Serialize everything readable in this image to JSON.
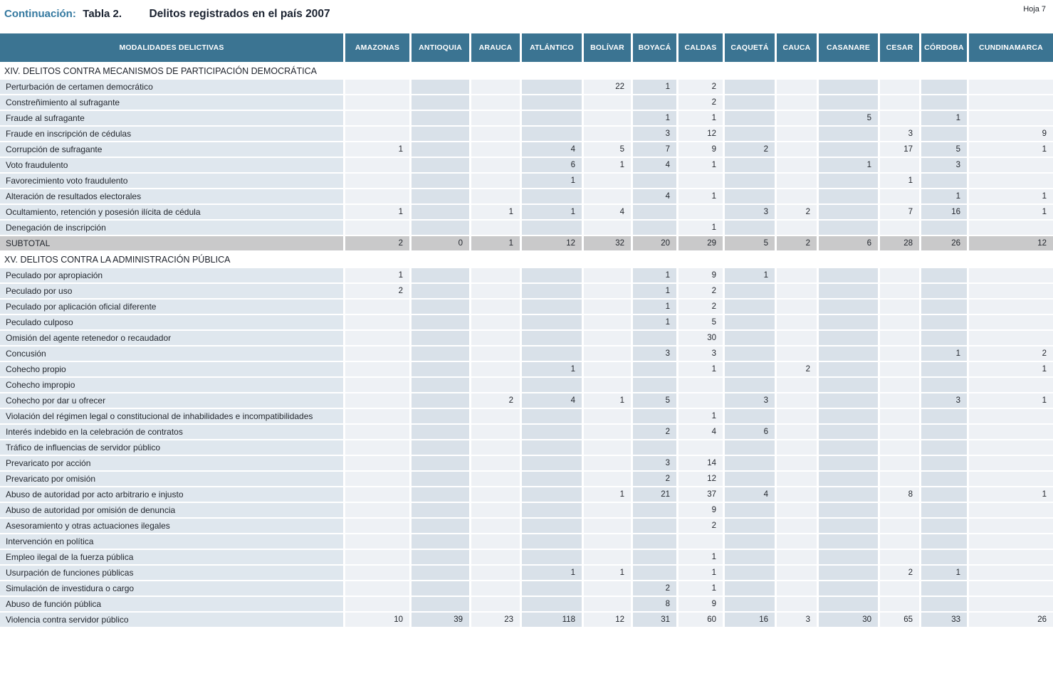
{
  "page": {
    "continuation_label": "Continuación:",
    "table_label": "Tabla 2.",
    "title": "Delitos registrados en el país 2007",
    "sheet": "Hoja 7"
  },
  "colors": {
    "accent": "#33789f",
    "header_bg": "#3b7492",
    "column_light": "#eef1f5",
    "column_dark": "#d9e1e9",
    "label_cell": "#dfe7ee",
    "subtotal_row": "#c9c9ca"
  },
  "table": {
    "header": [
      "MODALIDADES DELICTIVAS",
      "AMAZONAS",
      "ANTIOQUIA",
      "ARAUCA",
      "ATLÁNTICO",
      "BOLÍVAR",
      "BOYACÁ",
      "CALDAS",
      "CAQUETÁ",
      "CAUCA",
      "CASANARE",
      "CESAR",
      "CÓRDOBA",
      "CUNDINAMARCA"
    ],
    "sections": [
      {
        "title": "XIV. DELITOS CONTRA MECANISMOS DE PARTICIPACIÓN DEMOCRÁTICA",
        "rows": [
          {
            "label": "Perturbación de certamen democrático",
            "values": [
              "",
              "",
              "",
              "",
              "22",
              "1",
              "2",
              "",
              "",
              "",
              "",
              "",
              ""
            ]
          },
          {
            "label": "Constreñimiento al sufragante",
            "values": [
              "",
              "",
              "",
              "",
              "",
              "",
              "2",
              "",
              "",
              "",
              "",
              "",
              ""
            ]
          },
          {
            "label": "Fraude al sufragante",
            "values": [
              "",
              "",
              "",
              "",
              "",
              "1",
              "1",
              "",
              "",
              "5",
              "",
              "1",
              ""
            ]
          },
          {
            "label": "Fraude en inscripción de cédulas",
            "values": [
              "",
              "",
              "",
              "",
              "",
              "3",
              "12",
              "",
              "",
              "",
              "3",
              "",
              "9"
            ]
          },
          {
            "label": "Corrupción de sufragante",
            "values": [
              "1",
              "",
              "",
              "4",
              "5",
              "7",
              "9",
              "2",
              "",
              "",
              "17",
              "5",
              "1"
            ]
          },
          {
            "label": "Voto fraudulento",
            "values": [
              "",
              "",
              "",
              "6",
              "1",
              "4",
              "1",
              "",
              "",
              "1",
              "",
              "3",
              ""
            ]
          },
          {
            "label": "Favorecimiento voto fraudulento",
            "values": [
              "",
              "",
              "",
              "1",
              "",
              "",
              "",
              "",
              "",
              "",
              "1",
              "",
              ""
            ]
          },
          {
            "label": "Alteración de resultados electorales",
            "values": [
              "",
              "",
              "",
              "",
              "",
              "4",
              "1",
              "",
              "",
              "",
              "",
              "1",
              "1"
            ]
          },
          {
            "label": "Ocultamiento, retención y posesión ilícita de cédula",
            "values": [
              "1",
              "",
              "1",
              "1",
              "4",
              "",
              "",
              "3",
              "2",
              "",
              "7",
              "16",
              "1"
            ]
          },
          {
            "label": "Denegación de inscripción",
            "values": [
              "",
              "",
              "",
              "",
              "",
              "",
              "1",
              "",
              "",
              "",
              "",
              "",
              ""
            ]
          }
        ],
        "subtotal": {
          "label": "SUBTOTAL",
          "values": [
            "2",
            "0",
            "1",
            "12",
            "32",
            "20",
            "29",
            "5",
            "2",
            "6",
            "28",
            "26",
            "12"
          ]
        }
      },
      {
        "title": "XV. DELITOS CONTRA LA ADMINISTRACIÓN PÚBLICA",
        "rows": [
          {
            "label": "Peculado por apropiación",
            "values": [
              "1",
              "",
              "",
              "",
              "",
              "1",
              "9",
              "1",
              "",
              "",
              "",
              "",
              ""
            ]
          },
          {
            "label": "Peculado por uso",
            "values": [
              "2",
              "",
              "",
              "",
              "",
              "1",
              "2",
              "",
              "",
              "",
              "",
              "",
              ""
            ]
          },
          {
            "label": "Peculado por aplicación oficial diferente",
            "values": [
              "",
              "",
              "",
              "",
              "",
              "1",
              "2",
              "",
              "",
              "",
              "",
              "",
              ""
            ]
          },
          {
            "label": "Peculado culposo",
            "values": [
              "",
              "",
              "",
              "",
              "",
              "1",
              "5",
              "",
              "",
              "",
              "",
              "",
              ""
            ]
          },
          {
            "label": "Omisión del agente retenedor o recaudador",
            "values": [
              "",
              "",
              "",
              "",
              "",
              "",
              "30",
              "",
              "",
              "",
              "",
              "",
              ""
            ]
          },
          {
            "label": "Concusión",
            "values": [
              "",
              "",
              "",
              "",
              "",
              "3",
              "3",
              "",
              "",
              "",
              "",
              "1",
              "2"
            ]
          },
          {
            "label": "Cohecho propio",
            "values": [
              "",
              "",
              "",
              "1",
              "",
              "",
              "1",
              "",
              "2",
              "",
              "",
              "",
              "1"
            ]
          },
          {
            "label": "Cohecho impropio",
            "values": [
              "",
              "",
              "",
              "",
              "",
              "",
              "",
              "",
              "",
              "",
              "",
              "",
              ""
            ]
          },
          {
            "label": "Cohecho por dar u ofrecer",
            "values": [
              "",
              "",
              "2",
              "4",
              "1",
              "5",
              "",
              "3",
              "",
              "",
              "",
              "3",
              "1"
            ]
          },
          {
            "label": "Violación del régimen legal o constitucional de inhabilidades e incompatibilidades",
            "values": [
              "",
              "",
              "",
              "",
              "",
              "",
              "1",
              "",
              "",
              "",
              "",
              "",
              ""
            ]
          },
          {
            "label": "Interés indebido en la celebración de contratos",
            "values": [
              "",
              "",
              "",
              "",
              "",
              "2",
              "4",
              "6",
              "",
              "",
              "",
              "",
              ""
            ]
          },
          {
            "label": "Tráfico de influencias de servidor público",
            "values": [
              "",
              "",
              "",
              "",
              "",
              "",
              "",
              "",
              "",
              "",
              "",
              "",
              ""
            ]
          },
          {
            "label": "Prevaricato por acción",
            "values": [
              "",
              "",
              "",
              "",
              "",
              "3",
              "14",
              "",
              "",
              "",
              "",
              "",
              ""
            ]
          },
          {
            "label": "Prevaricato por omisión",
            "values": [
              "",
              "",
              "",
              "",
              "",
              "2",
              "12",
              "",
              "",
              "",
              "",
              "",
              ""
            ]
          },
          {
            "label": "Abuso de autoridad por acto arbitrario e injusto",
            "values": [
              "",
              "",
              "",
              "",
              "1",
              "21",
              "37",
              "4",
              "",
              "",
              "8",
              "",
              "1"
            ]
          },
          {
            "label": "Abuso de autoridad por omisión de denuncia",
            "values": [
              "",
              "",
              "",
              "",
              "",
              "",
              "9",
              "",
              "",
              "",
              "",
              "",
              ""
            ]
          },
          {
            "label": "Asesoramiento y otras actuaciones ilegales",
            "values": [
              "",
              "",
              "",
              "",
              "",
              "",
              "2",
              "",
              "",
              "",
              "",
              "",
              ""
            ]
          },
          {
            "label": "Intervención en política",
            "values": [
              "",
              "",
              "",
              "",
              "",
              "",
              "",
              "",
              "",
              "",
              "",
              "",
              ""
            ]
          },
          {
            "label": "Empleo ilegal de la fuerza pública",
            "values": [
              "",
              "",
              "",
              "",
              "",
              "",
              "1",
              "",
              "",
              "",
              "",
              "",
              ""
            ]
          },
          {
            "label": "Usurpación de funciones públicas",
            "values": [
              "",
              "",
              "",
              "1",
              "1",
              "",
              "1",
              "",
              "",
              "",
              "2",
              "1",
              ""
            ]
          },
          {
            "label": "Simulación de investidura o cargo",
            "values": [
              "",
              "",
              "",
              "",
              "",
              "2",
              "1",
              "",
              "",
              "",
              "",
              "",
              ""
            ]
          },
          {
            "label": "Abuso de función pública",
            "values": [
              "",
              "",
              "",
              "",
              "",
              "8",
              "9",
              "",
              "",
              "",
              "",
              "",
              ""
            ]
          },
          {
            "label": "Violencia contra servidor público",
            "values": [
              "10",
              "39",
              "23",
              "118",
              "12",
              "31",
              "60",
              "16",
              "3",
              "30",
              "65",
              "33",
              "26"
            ]
          }
        ],
        "subtotal": null
      }
    ]
  }
}
